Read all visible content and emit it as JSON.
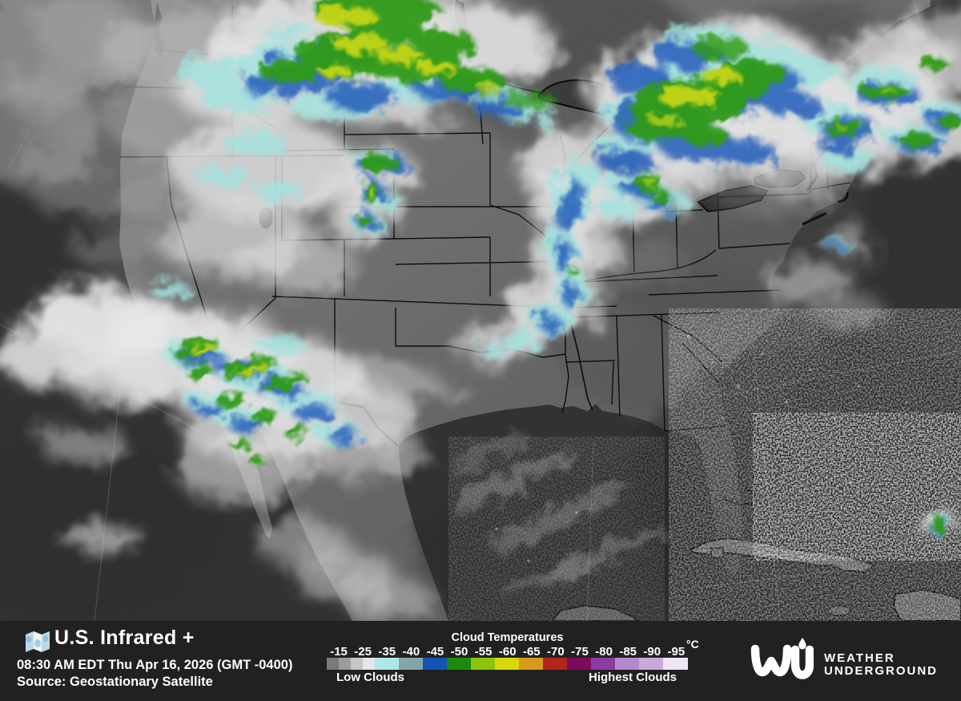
{
  "footer": {
    "title": "U.S. Infrared +",
    "timestamp": "08:30 AM EDT Thu Apr 16, 2026 (GMT -0400)",
    "source": "Source: Geostationary Satellite"
  },
  "legend": {
    "title": "Cloud Temperatures",
    "unit": "°C",
    "ticks": [
      "-15",
      "-25",
      "-35",
      "-40",
      "-45",
      "-50",
      "-55",
      "-60",
      "-65",
      "-70",
      "-75",
      "-80",
      "-85",
      "-90",
      "-95"
    ],
    "colors": [
      "#7a7a7a",
      "#9c9c9c",
      "#c6c6c6",
      "#e5e5e5",
      "#ace8e8",
      "#85a5a9",
      "#1454b4",
      "#1e8a0d",
      "#8dc30d",
      "#d6d70c",
      "#d69a1d",
      "#b3261a",
      "#7d0a5e",
      "#8e3ba1",
      "#b289cc",
      "#cbaad9",
      "#efe6f3"
    ],
    "segment_widths": [
      15,
      15,
      15,
      15,
      30,
      30,
      30,
      30,
      30,
      30,
      30,
      30,
      30,
      30,
      30,
      30,
      31
    ],
    "low_label": "Low Clouds",
    "high_label": "Highest Clouds"
  },
  "brand": {
    "name_line1": "WEATHER",
    "name_line2": "UNDERGROUND"
  }
}
